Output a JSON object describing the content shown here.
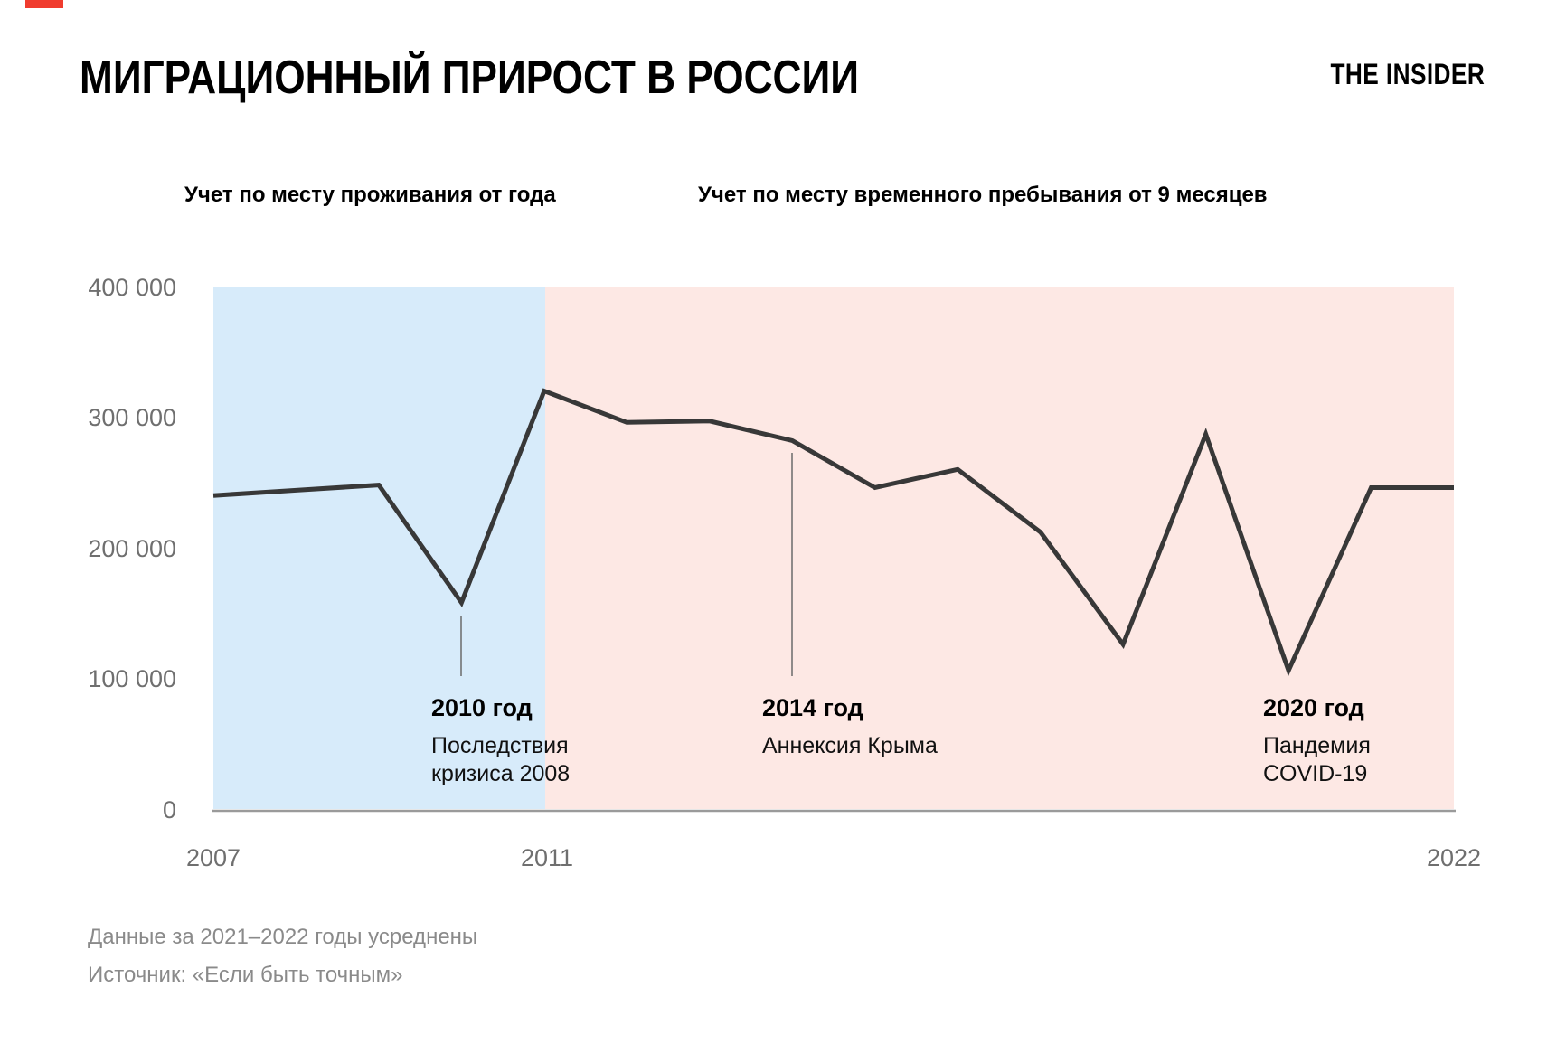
{
  "header": {
    "title": "МИГРАЦИОННЫЙ ПРИРОСТ В РОССИИ",
    "logo": "THE INSIDER"
  },
  "regions_header": {
    "blue_label": "Учет по месту проживания от года",
    "pink_label": "Учет по месту временного пребывания от 9 месяцев"
  },
  "chart_data": {
    "type": "line",
    "title": "Миграционный прирост в России",
    "xlabel": "",
    "ylabel": "",
    "grid": false,
    "x": [
      2007,
      2008,
      2009,
      2010,
      2011,
      2012,
      2013,
      2014,
      2015,
      2016,
      2017,
      2018,
      2019,
      2020,
      2021,
      2022
    ],
    "values": [
      240000,
      244000,
      248000,
      158000,
      320000,
      296000,
      297000,
      282000,
      246000,
      260000,
      212000,
      126000,
      287000,
      106000,
      246000,
      246000
    ],
    "ylim": [
      0,
      400000
    ],
    "xlim": [
      2007,
      2022
    ],
    "line_color": "#383838",
    "y_ticks": [
      {
        "value": 400000,
        "label": "400 000"
      },
      {
        "value": 300000,
        "label": "300 000"
      },
      {
        "value": 200000,
        "label": "200 000"
      },
      {
        "value": 100000,
        "label": "100 000"
      },
      {
        "value": 0,
        "label": "0"
      }
    ],
    "x_ticks": [
      {
        "year": 2007,
        "label": "2007"
      },
      {
        "year": 2011,
        "label": "2011"
      },
      {
        "year": 2022,
        "label": "2022"
      }
    ],
    "regions": [
      {
        "name": "residence",
        "label": "Учет по месту проживания от года",
        "from": 2007,
        "to": 2011,
        "color": "#D7EBFA"
      },
      {
        "name": "temporary",
        "label": "Учет по месту временного пребывания от 9 месяцев",
        "from": 2011,
        "to": 2022,
        "color": "#FDE8E4"
      }
    ]
  },
  "annotations": [
    {
      "year_label": "2010 год",
      "lines": [
        "Последствия",
        "кризиса 2008"
      ],
      "x_year": 2010
    },
    {
      "year_label": "2014 год",
      "lines": [
        "Аннексия Крыма"
      ],
      "x_year": 2014
    },
    {
      "year_label": "2020 год",
      "lines": [
        "Пандемия",
        "COVID-19"
      ],
      "x_year": 2020
    }
  ],
  "footer": {
    "note": "Данные за 2021–2022 годы усреднены",
    "source": "Источник: «Если быть точным»"
  }
}
